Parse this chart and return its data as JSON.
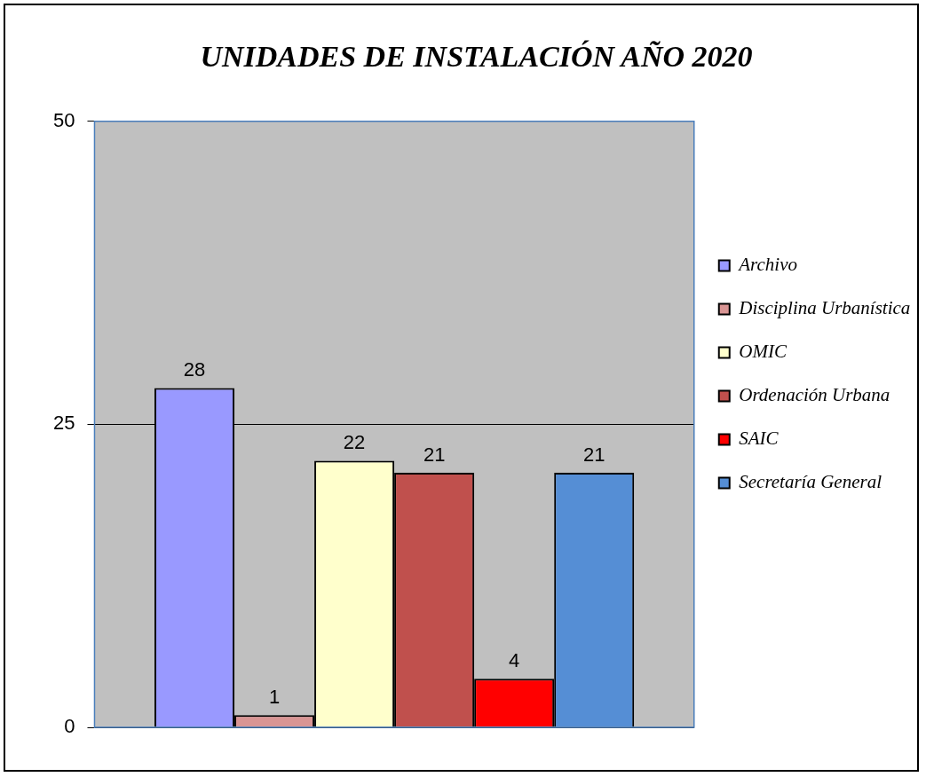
{
  "chart_data": {
    "type": "bar",
    "title": "UNIDADES DE INSTALACIÓN AÑO 2020",
    "categories": [
      null
    ],
    "series": [
      {
        "name": "Archivo",
        "color": "#9999ff",
        "values": [
          28
        ]
      },
      {
        "name": "Disciplina Urbanística",
        "color": "#d99594",
        "values": [
          1
        ]
      },
      {
        "name": "OMIC",
        "color": "#ffffcc",
        "values": [
          22
        ]
      },
      {
        "name": "Ordenación Urbana",
        "color": "#c0504d",
        "values": [
          21
        ]
      },
      {
        "name": "SAIC",
        "color": "#ff0000",
        "values": [
          4
        ]
      },
      {
        "name": "Secretaría General",
        "color": "#558ed5",
        "values": [
          21
        ]
      }
    ],
    "ylim": [
      0,
      50
    ],
    "yticks": [
      0,
      25,
      50
    ],
    "grid": "y",
    "legend": "right",
    "data_labels": true
  }
}
